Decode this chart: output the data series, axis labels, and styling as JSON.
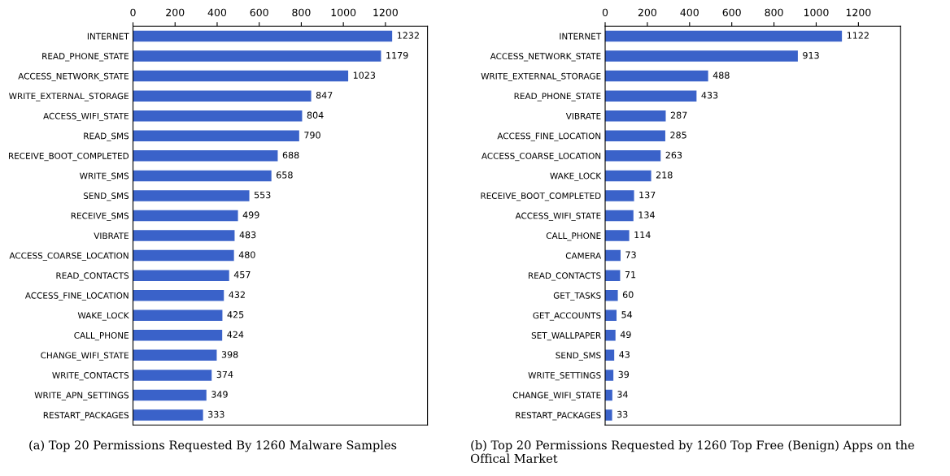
{
  "chart_data": [
    {
      "type": "bar",
      "orientation": "horizontal",
      "data_labels": true,
      "color": "#3a62c9",
      "xlim": [
        0,
        1400
      ],
      "xticks": [
        0,
        200,
        400,
        600,
        800,
        1000,
        1200
      ],
      "grid": false,
      "categories": [
        "INTERNET",
        "READ_PHONE_STATE",
        "ACCESS_NETWORK_STATE",
        "WRITE_EXTERNAL_STORAGE",
        "ACCESS_WIFI_STATE",
        "READ_SMS",
        "RECEIVE_BOOT_COMPLETED",
        "WRITE_SMS",
        "SEND_SMS",
        "RECEIVE_SMS",
        "VIBRATE",
        "ACCESS_COARSE_LOCATION",
        "READ_CONTACTS",
        "ACCESS_FINE_LOCATION",
        "WAKE_LOCK",
        "CALL_PHONE",
        "CHANGE_WIFI_STATE",
        "WRITE_CONTACTS",
        "WRITE_APN_SETTINGS",
        "RESTART_PACKAGES"
      ],
      "values": [
        1232,
        1179,
        1023,
        847,
        804,
        790,
        688,
        658,
        553,
        499,
        483,
        480,
        457,
        432,
        425,
        424,
        398,
        374,
        349,
        333
      ],
      "annotations": [
        "(a) Top 20 Permissions Requested By 1260 Malware Samples"
      ]
    },
    {
      "type": "bar",
      "orientation": "horizontal",
      "data_labels": true,
      "color": "#3a62c9",
      "xlim": [
        0,
        1400
      ],
      "xticks": [
        0,
        200,
        400,
        600,
        800,
        1000,
        1200
      ],
      "grid": false,
      "categories": [
        "INTERNET",
        "ACCESS_NETWORK_STATE",
        "WRITE_EXTERNAL_STORAGE",
        "READ_PHONE_STATE",
        "VIBRATE",
        "ACCESS_FINE_LOCATION",
        "ACCESS_COARSE_LOCATION",
        "WAKE_LOCK",
        "RECEIVE_BOOT_COMPLETED",
        "ACCESS_WIFI_STATE",
        "CALL_PHONE",
        "CAMERA",
        "READ_CONTACTS",
        "GET_TASKS",
        "GET_ACCOUNTS",
        "SET_WALLPAPER",
        "SEND_SMS",
        "WRITE_SETTINGS",
        "CHANGE_WIFI_STATE",
        "RESTART_PACKAGES"
      ],
      "values": [
        1122,
        913,
        488,
        433,
        287,
        285,
        263,
        218,
        137,
        134,
        114,
        73,
        71,
        60,
        54,
        49,
        43,
        39,
        34,
        33
      ],
      "annotations": [
        "(b) Top 20 Permissions Requested by 1260 Top Free (Benign) Apps on the Offical Market"
      ]
    }
  ]
}
